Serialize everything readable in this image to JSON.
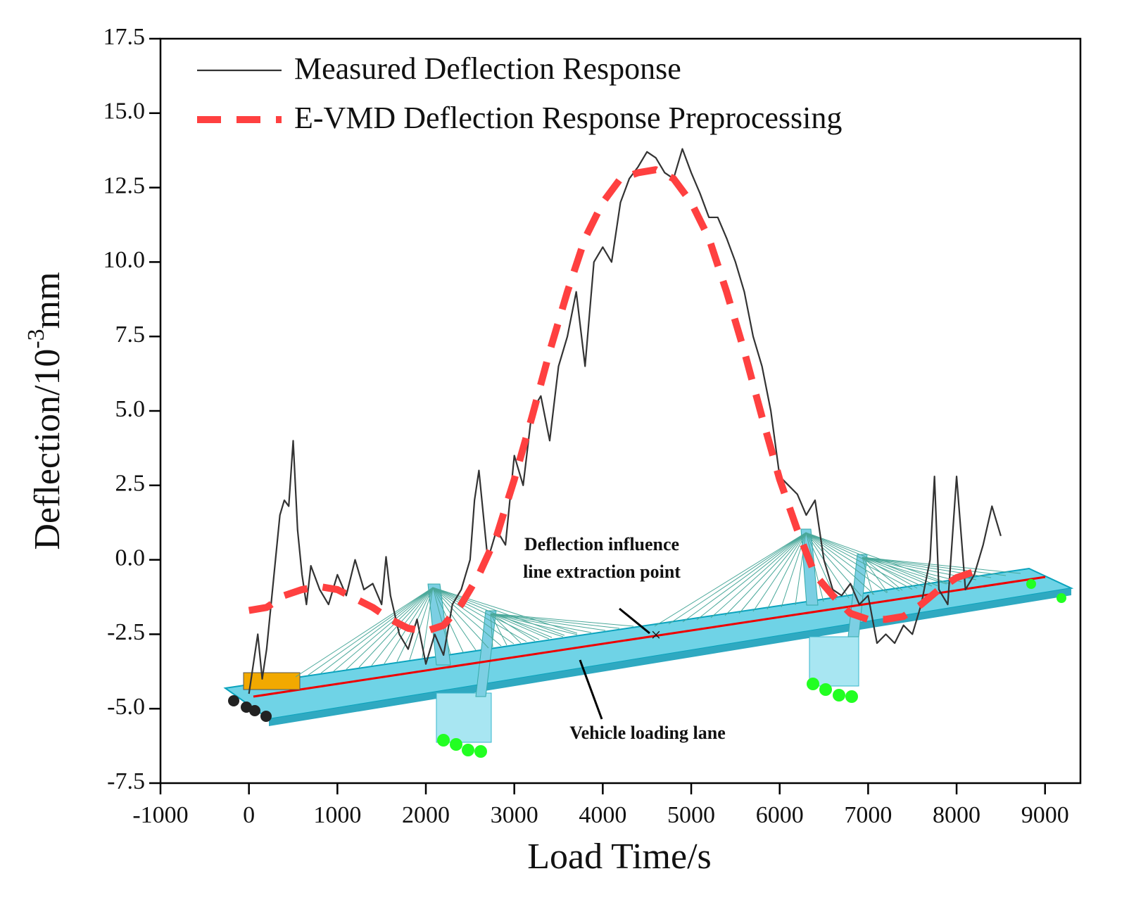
{
  "chart_data": {
    "type": "line",
    "xlabel": "Load Time/s",
    "ylabel": {
      "text": "Deflection/10",
      "sup": "-3",
      "unit": "mm"
    },
    "xlim": [
      -1000,
      9400
    ],
    "ylim": [
      -7.5,
      17.5
    ],
    "xticks": [
      -1000,
      0,
      1000,
      2000,
      3000,
      4000,
      5000,
      6000,
      7000,
      8000,
      9000
    ],
    "yticks": [
      -7.5,
      {
        "value": -5,
        "label": "-5.0"
      },
      -2.5,
      {
        "value": 0,
        "label": "0.0"
      },
      2.5,
      {
        "value": 5,
        "label": "5.0"
      },
      7.5,
      {
        "value": 10,
        "label": "10.0"
      },
      12.5,
      {
        "value": 15,
        "label": "15.0"
      },
      17.5
    ],
    "annotations": [
      [
        "Deflection influence",
        "line extraction point"
      ],
      [
        "Vehicle loading lane"
      ]
    ],
    "series": [
      {
        "name": "Measured Deflection Response",
        "color": "#333333",
        "style": "solid",
        "x": [
          0,
          50,
          100,
          150,
          200,
          250,
          300,
          350,
          400,
          450,
          500,
          550,
          600,
          650,
          700,
          800,
          900,
          1000,
          1100,
          1200,
          1300,
          1400,
          1500,
          1550,
          1600,
          1700,
          1800,
          1900,
          2000,
          2100,
          2200,
          2300,
          2400,
          2500,
          2550,
          2600,
          2700,
          2800,
          2900,
          3000,
          3100,
          3200,
          3300,
          3400,
          3500,
          3600,
          3700,
          3800,
          3900,
          4000,
          4100,
          4200,
          4300,
          4400,
          4500,
          4600,
          4700,
          4800,
          4900,
          5000,
          5100,
          5200,
          5300,
          5400,
          5500,
          5600,
          5700,
          5800,
          5900,
          6000,
          6100,
          6200,
          6300,
          6400,
          6500,
          6600,
          6700,
          6800,
          6900,
          7000,
          7100,
          7200,
          7300,
          7400,
          7500,
          7600,
          7700,
          7750,
          7800,
          7900,
          8000,
          8100,
          8200,
          8300,
          8400,
          8500
        ],
        "values": [
          -4.5,
          -3.5,
          -2.5,
          -4,
          -3,
          -1.5,
          0,
          1.5,
          2,
          1.8,
          4,
          1,
          -0.5,
          -1.5,
          -0.2,
          -1,
          -1.5,
          -0.5,
          -1.2,
          0,
          -1,
          -0.8,
          -1.5,
          0.1,
          -1.2,
          -2.5,
          -3,
          -2,
          -3.5,
          -2.5,
          -3.2,
          -1.5,
          -1,
          0,
          2,
          3,
          0,
          1,
          0.5,
          3.5,
          2.5,
          5,
          5.5,
          4,
          6.5,
          7.5,
          9,
          6.5,
          10,
          10.5,
          10,
          12,
          12.8,
          13.2,
          13.7,
          13.5,
          13,
          12.8,
          13.8,
          13,
          12.3,
          11.5,
          11.5,
          10.8,
          10,
          9,
          7.5,
          6.5,
          5,
          2.8,
          2.5,
          2.2,
          1.5,
          2,
          0,
          -1,
          -1.2,
          -0.8,
          -1.5,
          -1.2,
          -2.8,
          -2.5,
          -2.8,
          -2.2,
          -2.5,
          -1.5,
          0,
          2.8,
          -1,
          -1.5,
          2.8,
          -1,
          -0.5,
          0.5,
          1.8,
          0.8
        ]
      },
      {
        "name": "E-VMD Deflection Response Preprocessing",
        "color": "#ff4040",
        "style": "dashed",
        "x": [
          0,
          200,
          400,
          600,
          800,
          1000,
          1200,
          1400,
          1600,
          1800,
          2000,
          2200,
          2400,
          2600,
          2800,
          3000,
          3200,
          3400,
          3600,
          3800,
          4000,
          4200,
          4400,
          4600,
          4800,
          5000,
          5200,
          5400,
          5600,
          5800,
          6000,
          6200,
          6400,
          6600,
          6800,
          7000,
          7200,
          7400,
          7600,
          7800,
          8000,
          8200
        ],
        "values": [
          -1.7,
          -1.6,
          -1.2,
          -1,
          -0.9,
          -1,
          -1.3,
          -1.6,
          -2,
          -2.3,
          -2.4,
          -2.2,
          -1.5,
          -0.5,
          0.8,
          2.7,
          4.8,
          7,
          9,
          10.8,
          12,
          12.8,
          13,
          13.1,
          12.8,
          12,
          10.8,
          9,
          7,
          4.8,
          2.7,
          1,
          -0.5,
          -1.2,
          -1.8,
          -2,
          -2,
          -1.9,
          -1.5,
          -1,
          -0.6,
          -0.4
        ]
      }
    ]
  }
}
